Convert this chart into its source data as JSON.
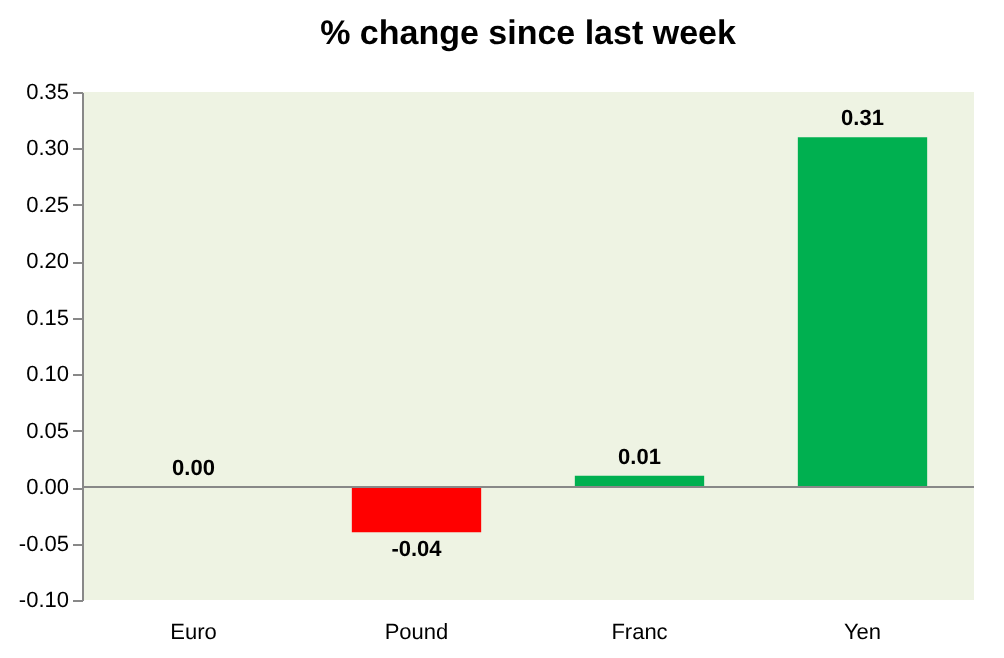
{
  "chart_data": {
    "type": "bar",
    "title": "% change since last week",
    "categories": [
      "Euro",
      "Pound",
      "Franc",
      "Yen"
    ],
    "values": [
      0.0,
      -0.04,
      0.01,
      0.31
    ],
    "colors": [
      "#00b050",
      "#ff0000",
      "#00b050",
      "#00b050"
    ],
    "ylim": [
      -0.1,
      0.35
    ],
    "yticks": [
      {
        "value": -0.1,
        "label": "-0.10"
      },
      {
        "value": -0.05,
        "label": "-0.05"
      },
      {
        "value": 0,
        "label": "0.00"
      },
      {
        "value": 0.05,
        "label": "0.05"
      },
      {
        "value": 0.1,
        "label": "0.10"
      },
      {
        "value": 0.15,
        "label": "0.15"
      },
      {
        "value": 0.2,
        "label": "0.20"
      },
      {
        "value": 0.25,
        "label": "0.25"
      },
      {
        "value": 0.3,
        "label": "0.30"
      },
      {
        "value": 0.35,
        "label": "0.35"
      }
    ],
    "value_labels": [
      "0.00",
      "-0.04",
      "0.01",
      "0.31"
    ]
  }
}
